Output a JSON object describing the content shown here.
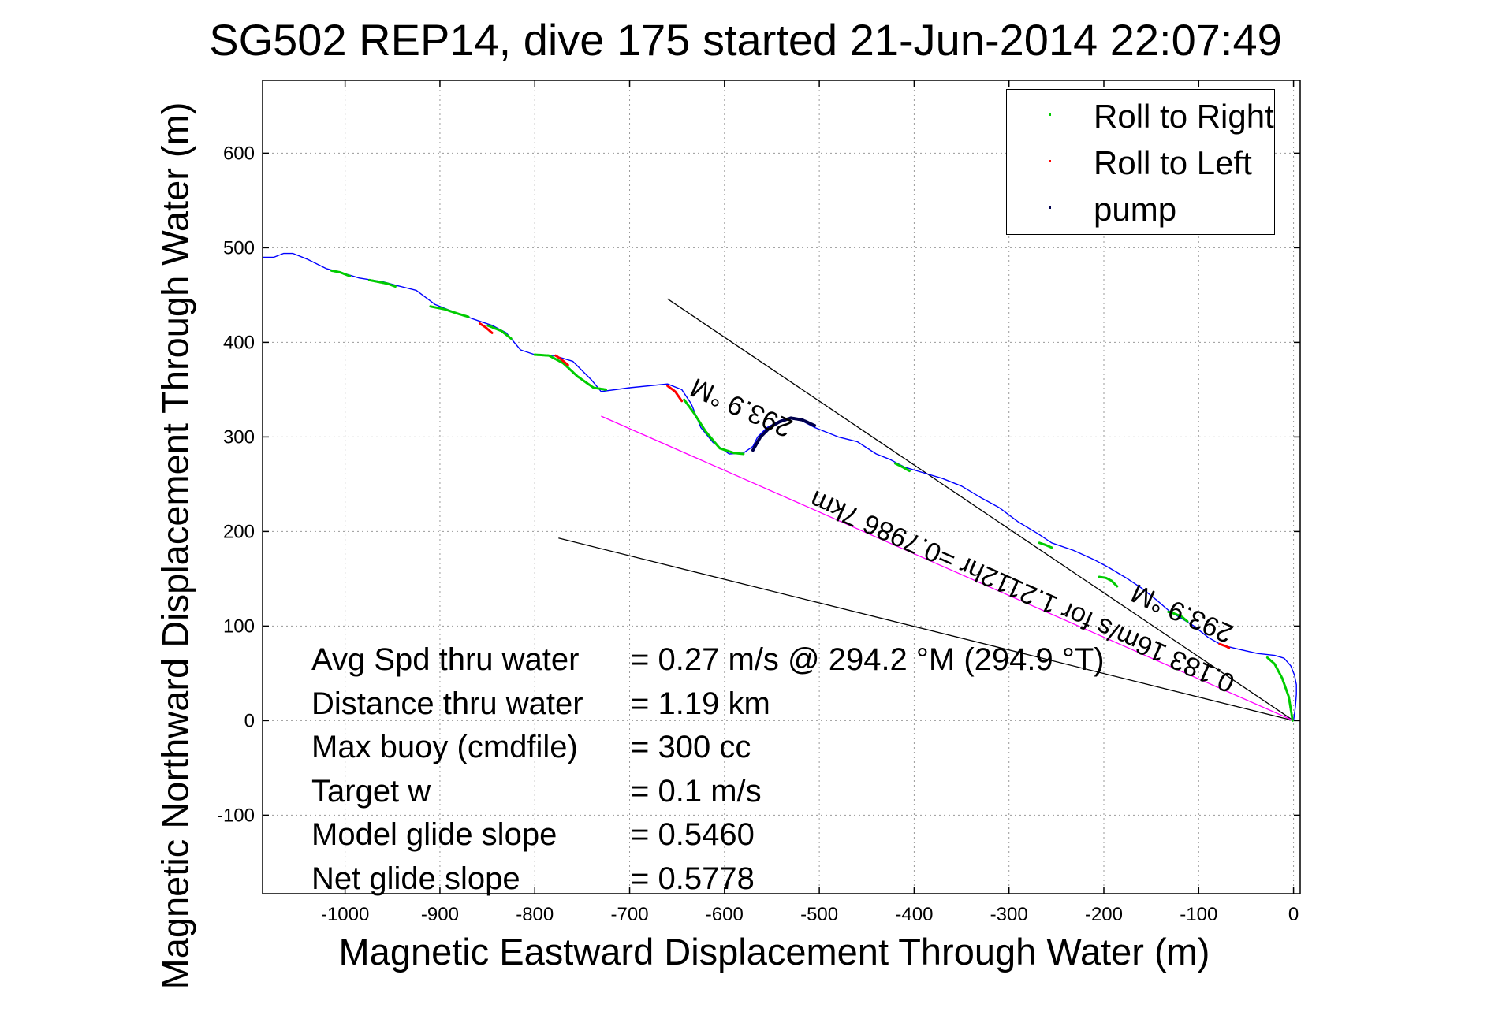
{
  "chart_data": {
    "type": "line",
    "title": "SG502 REP14, dive 175 started 21-Jun-2014 22:07:49",
    "xlabel": "Magnetic Eastward Displacement Through Water (m)",
    "ylabel": "Magnetic Northward Displacement Through Water (m)",
    "xlim": [
      -1087,
      7
    ],
    "ylim": [
      -183,
      677
    ],
    "xticks": [
      -1000,
      -900,
      -800,
      -700,
      -600,
      -500,
      -400,
      -300,
      -200,
      -100,
      0
    ],
    "yticks": [
      -100,
      0,
      100,
      200,
      300,
      400,
      500,
      600
    ],
    "grid": true,
    "legend_position": "top-right",
    "legend": [
      {
        "label": "Roll to Right",
        "color": "#00cc00"
      },
      {
        "label": "Roll to Left",
        "color": "#ff0000"
      },
      {
        "label": "pump",
        "color": "#00004d"
      }
    ],
    "track": {
      "color": "#0000ff",
      "x": [
        0,
        2,
        3,
        3,
        1,
        -3,
        -10,
        -20,
        -38,
        -60,
        -76,
        -90,
        -105,
        -118,
        -130,
        -145,
        -160,
        -175,
        -195,
        -210,
        -232,
        -255,
        -270,
        -290,
        -310,
        -330,
        -350,
        -370,
        -390,
        -410,
        -425,
        -440,
        -460,
        -480,
        -505,
        -520,
        -528,
        -540,
        -555,
        -565,
        -570,
        -580,
        -595,
        -612,
        -625,
        -635,
        -645,
        -660,
        -700,
        -730,
        -740,
        -760,
        -780,
        -800,
        -815,
        -830,
        -845,
        -860,
        -880,
        -905,
        -925,
        -945,
        -960,
        -985,
        -1005,
        -1020,
        -1040,
        -1055,
        -1065,
        -1075,
        -1087
      ],
      "y": [
        0,
        15,
        28,
        38,
        48,
        58,
        66,
        69,
        71,
        76,
        80,
        88,
        100,
        108,
        115,
        128,
        140,
        150,
        162,
        170,
        180,
        188,
        198,
        210,
        225,
        236,
        248,
        256,
        262,
        268,
        276,
        282,
        295,
        300,
        310,
        318,
        320,
        318,
        310,
        300,
        290,
        283,
        282,
        294,
        310,
        335,
        350,
        356,
        352,
        348,
        360,
        380,
        386,
        387,
        392,
        410,
        418,
        423,
        430,
        440,
        455,
        460,
        464,
        468,
        474,
        478,
        488,
        494,
        494,
        490,
        490
      ]
    },
    "roll_right_segments": [
      {
        "x": [
          -1,
          -5,
          -12,
          -20,
          -28
        ],
        "y": [
          0,
          25,
          45,
          60,
          67
        ]
      },
      {
        "x": [
          -112,
          -118,
          -125,
          -132
        ],
        "y": [
          105,
          110,
          113,
          115
        ]
      },
      {
        "x": [
          -186,
          -192,
          -198,
          -205
        ],
        "y": [
          142,
          148,
          151,
          152
        ]
      },
      {
        "x": [
          -255,
          -262,
          -268
        ],
        "y": [
          183,
          186,
          188
        ]
      },
      {
        "x": [
          -405,
          -412,
          -420
        ],
        "y": [
          264,
          268,
          272
        ]
      },
      {
        "x": [
          -580,
          -590,
          -605,
          -620,
          -632,
          -643
        ],
        "y": [
          282,
          283,
          288,
          306,
          325,
          340
        ]
      },
      {
        "x": [
          -725,
          -738,
          -755,
          -770,
          -785,
          -800
        ],
        "y": [
          350,
          352,
          364,
          378,
          386,
          387
        ]
      },
      {
        "x": [
          -825,
          -835,
          -845,
          -850
        ],
        "y": [
          404,
          412,
          416,
          418
        ]
      },
      {
        "x": [
          -870,
          -880,
          -895,
          -910
        ],
        "y": [
          427,
          430,
          435,
          438
        ]
      },
      {
        "x": [
          -947,
          -955,
          -965,
          -975
        ],
        "y": [
          459,
          462,
          464,
          466
        ]
      },
      {
        "x": [
          -995,
          -1005,
          -1015
        ],
        "y": [
          470,
          474,
          476
        ]
      }
    ],
    "roll_left_segments": [
      {
        "x": [
          -68,
          -72,
          -78
        ],
        "y": [
          77,
          79,
          81
        ]
      },
      {
        "x": [
          -645,
          -652,
          -660
        ],
        "y": [
          338,
          348,
          354
        ]
      },
      {
        "x": [
          -765,
          -772,
          -778
        ],
        "y": [
          376,
          382,
          386
        ]
      },
      {
        "x": [
          -845,
          -852,
          -858
        ],
        "y": [
          410,
          416,
          420
        ]
      }
    ],
    "pump_segments": [
      {
        "x": [
          -570,
          -562,
          -552,
          -542,
          -530,
          -518,
          -505
        ],
        "y": [
          286,
          300,
          310,
          316,
          320,
          318,
          312
        ]
      }
    ],
    "reference_lines": [
      {
        "color": "#000000",
        "x": [
          0,
          -660
        ],
        "y": [
          0,
          446
        ]
      },
      {
        "color": "#000000",
        "x": [
          0,
          -775
        ],
        "y": [
          0,
          193
        ]
      },
      {
        "color": "#ff00ff",
        "x": [
          0,
          -730
        ],
        "y": [
          0,
          322
        ]
      }
    ],
    "annotations": [
      {
        "text": "293.9 °M",
        "x": -72,
        "y": 76,
        "angle_deg": 203.9
      },
      {
        "text": "293.9 °M",
        "x": -537,
        "y": 294,
        "angle_deg": 203.9
      },
      {
        "text": "0.183 16m/s for 1.2112hr =0.7986 7km",
        "x": -70,
        "y": 24,
        "angle_deg": 203.9
      }
    ],
    "stats": [
      {
        "label": "Avg Spd thru water",
        "value": "=  0.27 m/s @ 294.2 °M (294.9 °T)"
      },
      {
        "label": "Distance thru water",
        "value": "=  1.19 km"
      },
      {
        "label": "Max buoy (cmdfile)",
        "value": "= 300 cc"
      },
      {
        "label": "Target w",
        "value": "= 0.1 m/s"
      },
      {
        "label": "Model glide slope",
        "value": "= 0.5460"
      },
      {
        "label": "Net glide slope",
        "value": "= 0.5778"
      }
    ]
  }
}
